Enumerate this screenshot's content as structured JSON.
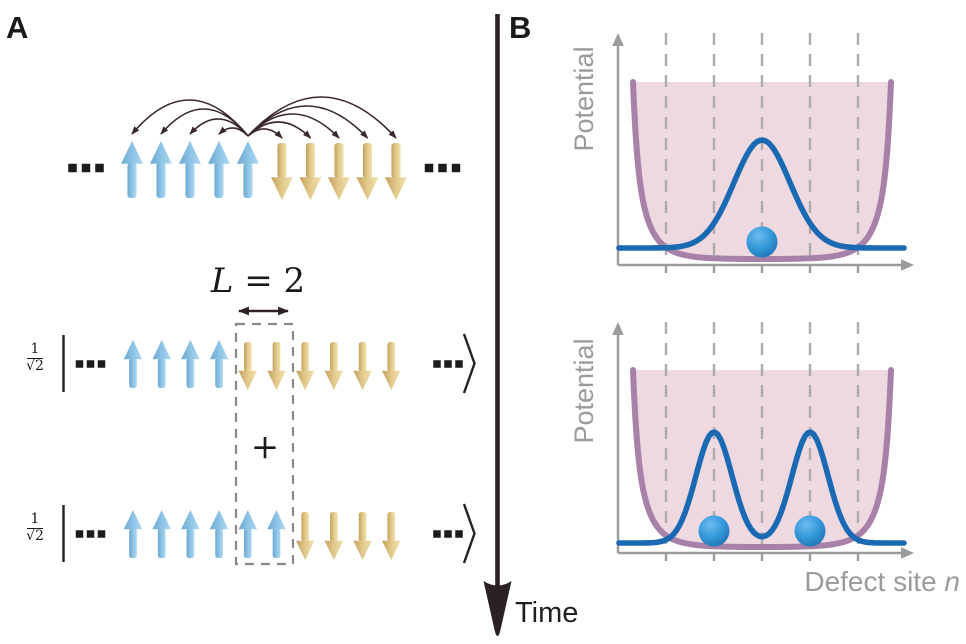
{
  "figure": {
    "panel_a_label": "A",
    "panel_b_label": "B",
    "time_axis_label": "Time"
  },
  "panel_a": {
    "top_chain": {
      "spins": [
        "up",
        "up",
        "up",
        "up",
        "up",
        "down",
        "down",
        "down",
        "down",
        "down"
      ],
      "coupling_source_index": 4,
      "left_ellipsis_dots": 3,
      "right_ellipsis_dots": 3
    },
    "domain_wall_length_label": "L = 2",
    "plus_operator": "+",
    "superposition_states": [
      {
        "coefficient_numerator": "1",
        "coefficient_denominator": "√2",
        "spins": [
          "up",
          "up",
          "up",
          "up",
          "down",
          "down",
          "down",
          "down",
          "down",
          "down"
        ],
        "boxed_spin_indices": [
          4,
          5
        ],
        "left_ellipsis_dots": 3,
        "right_ellipsis_dots": 3
      },
      {
        "coefficient_numerator": "1",
        "coefficient_denominator": "√2",
        "spins": [
          "up",
          "up",
          "up",
          "up",
          "up",
          "up",
          "down",
          "down",
          "down",
          "down"
        ],
        "boxed_spin_indices": [
          4,
          5
        ],
        "left_ellipsis_dots": 3,
        "right_ellipsis_dots": 3
      }
    ]
  },
  "panel_b": {
    "ylabel": "Potential",
    "xlabel_text": "Defect site ",
    "xlabel_variable": "n",
    "gridline_sites": 5,
    "plots": [
      {
        "name": "delocalized-single-defect",
        "wavefunction_peak_sites": [
          3
        ],
        "ball_sites": [
          3
        ]
      },
      {
        "name": "two-defect-superposition",
        "wavefunction_peak_sites": [
          2,
          4
        ],
        "ball_sites": [
          2,
          4
        ]
      }
    ]
  },
  "colors": {
    "spin_up": "#8CC3E6",
    "spin_down": "#E2C98C",
    "coupling_arc": "#3A282A",
    "time_arrow": "#2B2022",
    "axis_gray": "#9C9C9C",
    "gridline_gray": "#ACACAC",
    "label_gray": "#9B9B9B",
    "potential_stroke": "#A881A9",
    "potential_fill": "#EFD9E1",
    "wavefunction_blue": "#1A6AB3",
    "ball_blue": "#2F92D4",
    "dashed_box_gray": "#8A8A8A",
    "text_dark": "#1A1A1A"
  }
}
